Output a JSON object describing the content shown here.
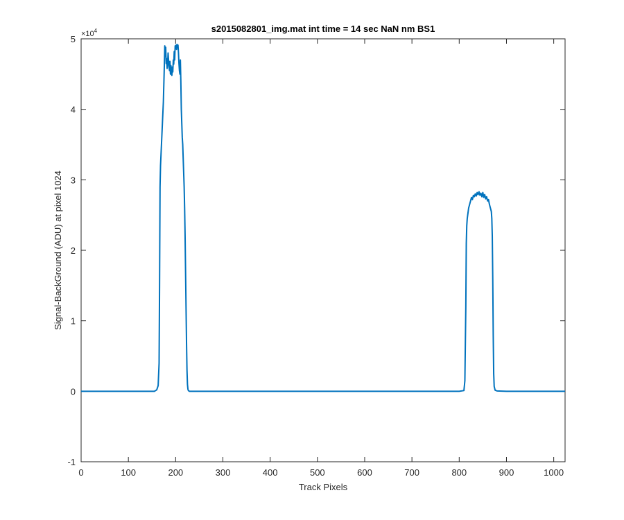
{
  "chart_data": {
    "type": "line",
    "title": "s2015082801_img.mat int time = 14 sec  NaN nm BS1",
    "xlabel": "Track Pixels",
    "ylabel": "Signal-BackGround (ADU) at pixel 1024",
    "xlim": [
      0,
      1024
    ],
    "ylim": [
      -10000,
      50000
    ],
    "x_ticks": [
      0,
      100,
      200,
      300,
      400,
      500,
      600,
      700,
      800,
      900,
      1000
    ],
    "x_tick_labels": [
      "0",
      "100",
      "200",
      "300",
      "400",
      "500",
      "600",
      "700",
      "800",
      "900",
      "1000"
    ],
    "y_ticks": [
      -10000,
      0,
      10000,
      20000,
      30000,
      40000,
      50000
    ],
    "y_tick_labels": [
      "-1",
      "0",
      "1",
      "2",
      "3",
      "4",
      "5"
    ],
    "y_exponent_base": "×10",
    "y_exponent_power": "4",
    "grid": false,
    "line_color": "#0072BD",
    "series": [
      {
        "x": [
          0,
          155,
          160,
          163,
          165,
          166,
          167,
          168,
          170,
          172,
          174,
          175,
          176,
          177,
          178,
          179,
          180,
          181,
          182,
          183,
          184,
          185,
          186,
          187,
          188,
          189,
          190,
          191,
          192,
          193,
          194,
          195,
          196,
          197,
          198,
          199,
          200,
          201,
          202,
          203,
          204,
          205,
          206,
          207,
          208,
          209,
          210,
          211,
          212,
          213,
          214,
          215,
          216,
          217,
          218,
          219,
          220,
          221,
          222,
          223,
          224,
          225,
          226,
          227,
          228,
          229,
          230,
          231,
          233,
          236,
          240,
          300,
          400,
          500,
          600,
          700,
          800,
          810,
          812,
          814,
          815,
          816,
          817,
          818,
          820,
          822,
          824,
          826,
          828,
          830,
          832,
          834,
          836,
          838,
          840,
          842,
          844,
          846,
          848,
          850,
          852,
          854,
          856,
          858,
          860,
          862,
          864,
          866,
          868,
          869,
          870,
          871,
          872,
          873,
          874,
          876,
          880,
          900,
          1000,
          1024
        ],
        "y": [
          0,
          0,
          200,
          800,
          4000,
          15000,
          29000,
          32000,
          35000,
          38000,
          41000,
          43500,
          46000,
          49000,
          47500,
          48800,
          46500,
          47200,
          45800,
          46400,
          48000,
          47000,
          46000,
          45500,
          46800,
          45000,
          46200,
          45600,
          44800,
          46000,
          45300,
          47000,
          46400,
          48200,
          47000,
          49000,
          48600,
          49100,
          48500,
          49200,
          48800,
          49100,
          48000,
          46500,
          45500,
          45000,
          47000,
          44000,
          40000,
          38000,
          36000,
          35000,
          33000,
          31000,
          29000,
          26000,
          22000,
          17000,
          12000,
          7000,
          3000,
          1000,
          300,
          100,
          50,
          0,
          0,
          0,
          0,
          0,
          0,
          0,
          0,
          0,
          0,
          0,
          0,
          100,
          1500,
          12000,
          21000,
          23500,
          24500,
          25000,
          26000,
          26500,
          27000,
          27500,
          27200,
          27800,
          27600,
          28000,
          27700,
          28200,
          27900,
          28300,
          27800,
          28100,
          27600,
          28200,
          27500,
          27900,
          27300,
          27600,
          27000,
          27200,
          26500,
          26000,
          25500,
          24500,
          22000,
          16000,
          8000,
          2500,
          700,
          150,
          50,
          0,
          0,
          0
        ]
      }
    ]
  }
}
